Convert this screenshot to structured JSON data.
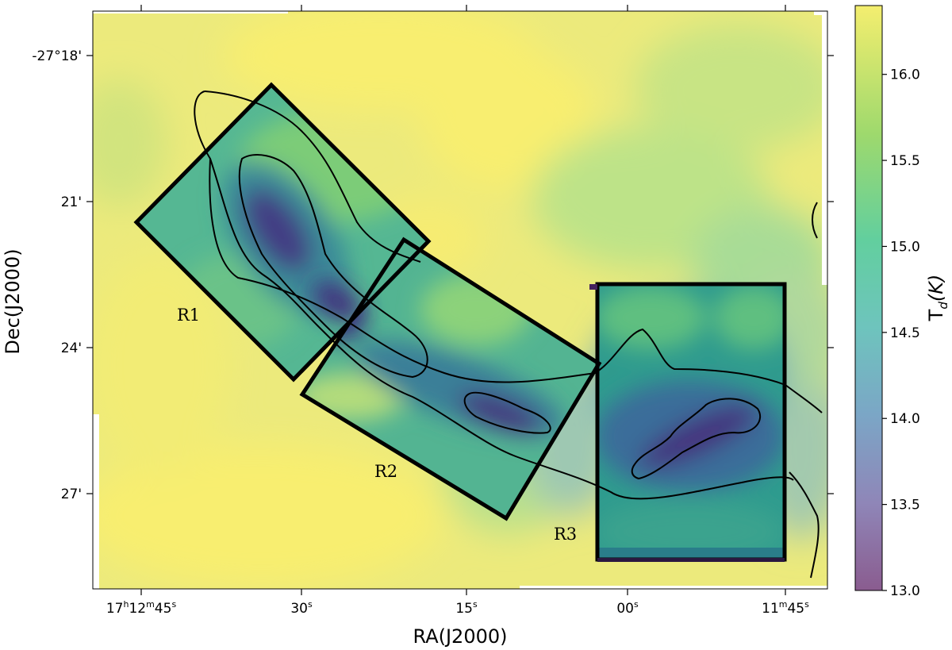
{
  "chart_data": {
    "type": "heatmap",
    "title": "",
    "xlabel": "RA(J2000)",
    "ylabel": "Dec(J2000)",
    "colorbar": {
      "label": "T",
      "label_sub": "d",
      "label_rest": "(K)",
      "range": [
        13.0,
        16.4
      ],
      "ticks": [
        "13.0",
        "13.5",
        "14.0",
        "14.5",
        "15.0",
        "15.5",
        "16.0"
      ],
      "colors": [
        "#8a5c8f",
        "#8f86b8",
        "#7ba6c6",
        "#6ec4bd",
        "#62cf9e",
        "#9ed96d",
        "#f4ee6f"
      ]
    },
    "x_ticks": [
      {
        "h": "17",
        "hs": "h",
        "m": "12",
        "ms": "m",
        "s": "45",
        "ss": "s"
      },
      {
        "s": "30",
        "ss": "s"
      },
      {
        "s": "15",
        "ss": "s"
      },
      {
        "s": "00",
        "ss": "s"
      },
      {
        "m": "11",
        "ms": "m",
        "s": "45",
        "ss": "s"
      }
    ],
    "y_ticks": [
      "-27°18'",
      "21'",
      "24'",
      "27'"
    ],
    "regions": [
      {
        "label": "R1"
      },
      {
        "label": "R2"
      },
      {
        "label": "R3"
      }
    ],
    "colors": {
      "cold_core": "#44307e",
      "background": "#f6ec72",
      "box": "#000000"
    }
  }
}
